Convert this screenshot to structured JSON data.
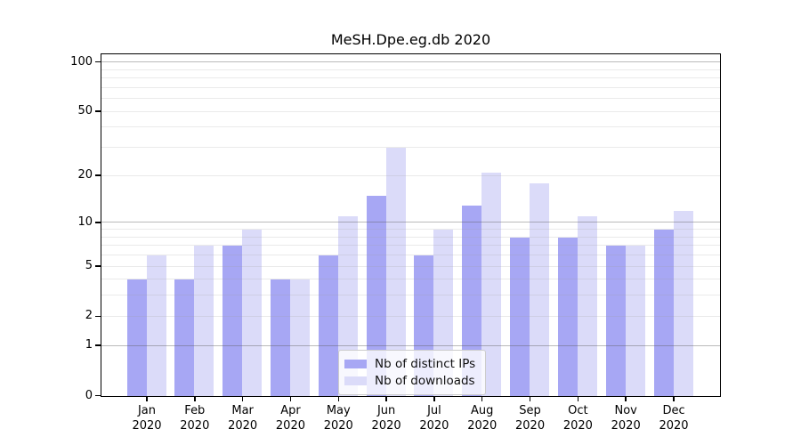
{
  "title": "MeSH.Dpe.eg.db 2020",
  "chart_data": {
    "type": "bar",
    "title": "MeSH.Dpe.eg.db 2020",
    "y_scale": "log-like (log10 of 1+value)",
    "categories": [
      "Jan",
      "Feb",
      "Mar",
      "Apr",
      "May",
      "Jun",
      "Jul",
      "Aug",
      "Sep",
      "Oct",
      "Nov",
      "Dec"
    ],
    "category_year": "2020",
    "series": [
      {
        "name": "Nb of distinct IPs",
        "color": "#a7a7f4",
        "values": [
          4,
          4,
          7,
          4,
          6,
          15,
          6,
          13,
          8,
          8,
          7,
          9
        ]
      },
      {
        "name": "Nb of downloads",
        "color": "#dbdbf9",
        "values": [
          6,
          7,
          9,
          4,
          11,
          30,
          9,
          21,
          18,
          11,
          7,
          12
        ]
      }
    ],
    "y_ticks": [
      0,
      1,
      2,
      5,
      10,
      20,
      50,
      100
    ],
    "major_gridlines": [
      1,
      10,
      100
    ],
    "minor_gridlines": [
      2,
      3,
      4,
      5,
      6,
      7,
      8,
      9,
      20,
      30,
      40,
      50,
      60,
      70,
      80,
      90
    ],
    "ylim": [
      0,
      116
    ],
    "grid": "on, drawn over bars",
    "legend_position": "inside plot, lower center"
  },
  "legend": {
    "items": [
      {
        "label": "Nb of distinct IPs",
        "color": "#a7a7f4"
      },
      {
        "label": "Nb of downloads",
        "color": "#dbdbf9"
      }
    ]
  },
  "colors": {
    "background": "#ffffff",
    "spine": "#000000",
    "major_gridline": "#ababab",
    "minor_gridline": "#e5e5e5",
    "bar_distinct_ips": "#a7a7f4",
    "bar_downloads": "#dbdbf9"
  }
}
